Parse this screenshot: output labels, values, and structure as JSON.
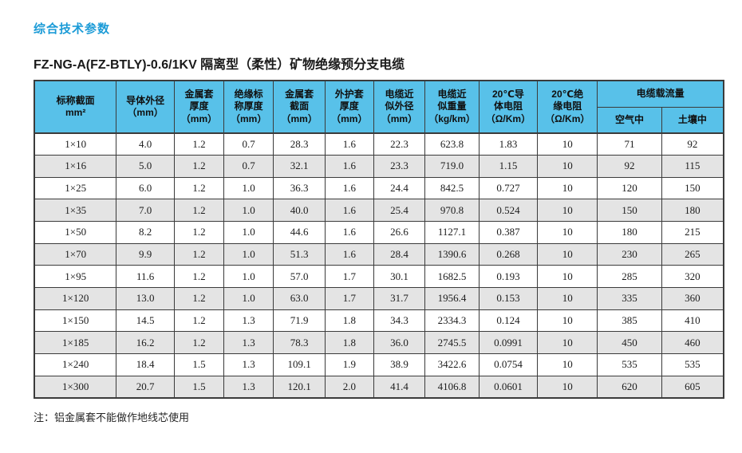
{
  "title": "综合技术参数",
  "subtitle": "FZ-NG-A(FZ-BTLY)-0.6/1KV 隔离型（柔性）矿物绝缘预分支电缆",
  "note": "注：铝金属套不能做作地线芯使用",
  "colors": {
    "title_blue": "#1b9bd7",
    "header_blue": "#58c1e9",
    "row_alt_gray": "#e4e4e4",
    "border_dark": "#3b3b3b"
  },
  "table": {
    "headers": [
      "标称截面\nmm²",
      "导体外径\n（mm）",
      "金属套\n厚度\n（mm）",
      "绝缘标\n称厚度\n（mm）",
      "金属套\n截面\n（mm）",
      "外护套\n厚度\n（mm）",
      "电缆近\n似外径\n（mm）",
      "电缆近\n似重量\n（kg/km）",
      "20℃导\n体电阻\n（Ω/Km）",
      "20℃绝\n缘电阻\n（Ω/Km）"
    ],
    "group_header": "电缆载流量",
    "sub_headers": [
      "空气中",
      "土壤中"
    ],
    "rows": [
      [
        "1×10",
        "4.0",
        "1.2",
        "0.7",
        "28.3",
        "1.6",
        "22.3",
        "623.8",
        "1.83",
        "10",
        "71",
        "92"
      ],
      [
        "1×16",
        "5.0",
        "1.2",
        "0.7",
        "32.1",
        "1.6",
        "23.3",
        "719.0",
        "1.15",
        "10",
        "92",
        "115"
      ],
      [
        "1×25",
        "6.0",
        "1.2",
        "1.0",
        "36.3",
        "1.6",
        "24.4",
        "842.5",
        "0.727",
        "10",
        "120",
        "150"
      ],
      [
        "1×35",
        "7.0",
        "1.2",
        "1.0",
        "40.0",
        "1.6",
        "25.4",
        "970.8",
        "0.524",
        "10",
        "150",
        "180"
      ],
      [
        "1×50",
        "8.2",
        "1.2",
        "1.0",
        "44.6",
        "1.6",
        "26.6",
        "1127.1",
        "0.387",
        "10",
        "180",
        "215"
      ],
      [
        "1×70",
        "9.9",
        "1.2",
        "1.0",
        "51.3",
        "1.6",
        "28.4",
        "1390.6",
        "0.268",
        "10",
        "230",
        "265"
      ],
      [
        "1×95",
        "11.6",
        "1.2",
        "1.0",
        "57.0",
        "1.7",
        "30.1",
        "1682.5",
        "0.193",
        "10",
        "285",
        "320"
      ],
      [
        "1×120",
        "13.0",
        "1.2",
        "1.0",
        "63.0",
        "1.7",
        "31.7",
        "1956.4",
        "0.153",
        "10",
        "335",
        "360"
      ],
      [
        "1×150",
        "14.5",
        "1.2",
        "1.3",
        "71.9",
        "1.8",
        "34.3",
        "2334.3",
        "0.124",
        "10",
        "385",
        "410"
      ],
      [
        "1×185",
        "16.2",
        "1.2",
        "1.3",
        "78.3",
        "1.8",
        "36.0",
        "2745.5",
        "0.0991",
        "10",
        "450",
        "460"
      ],
      [
        "1×240",
        "18.4",
        "1.5",
        "1.3",
        "109.1",
        "1.9",
        "38.9",
        "3422.6",
        "0.0754",
        "10",
        "535",
        "535"
      ],
      [
        "1×300",
        "20.7",
        "1.5",
        "1.3",
        "120.1",
        "2.0",
        "41.4",
        "4106.8",
        "0.0601",
        "10",
        "620",
        "605"
      ]
    ]
  }
}
